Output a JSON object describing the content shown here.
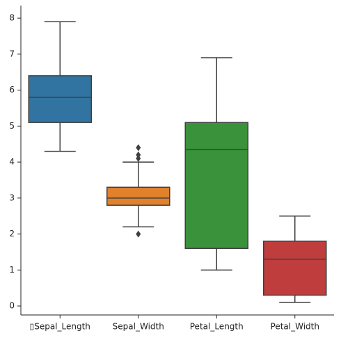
{
  "chart_data": {
    "type": "box",
    "categories": [
      "▯Sepal_Length",
      "Sepal_Width",
      "Petal_Length",
      "Petal_Width"
    ],
    "colors": [
      "#3274a1",
      "#e1812c",
      "#3a923a",
      "#c03d3e"
    ],
    "boxes": [
      {
        "whislo": 4.3,
        "q1": 5.1,
        "med": 5.8,
        "q3": 6.4,
        "whishi": 7.9,
        "fliers": []
      },
      {
        "whislo": 2.2,
        "q1": 2.8,
        "med": 3.0,
        "q3": 3.3,
        "whishi": 4.0,
        "fliers": [
          4.4,
          4.1,
          4.2,
          2.0
        ]
      },
      {
        "whislo": 1.0,
        "q1": 1.6,
        "med": 4.35,
        "q3": 5.1,
        "whishi": 6.9,
        "fliers": []
      },
      {
        "whislo": 0.1,
        "q1": 0.3,
        "med": 1.3,
        "q3": 1.8,
        "whishi": 2.5,
        "fliers": []
      }
    ],
    "ylim": [
      -0.25,
      8.35
    ],
    "yticks": [
      0,
      1,
      2,
      3,
      4,
      5,
      6,
      7,
      8
    ]
  }
}
